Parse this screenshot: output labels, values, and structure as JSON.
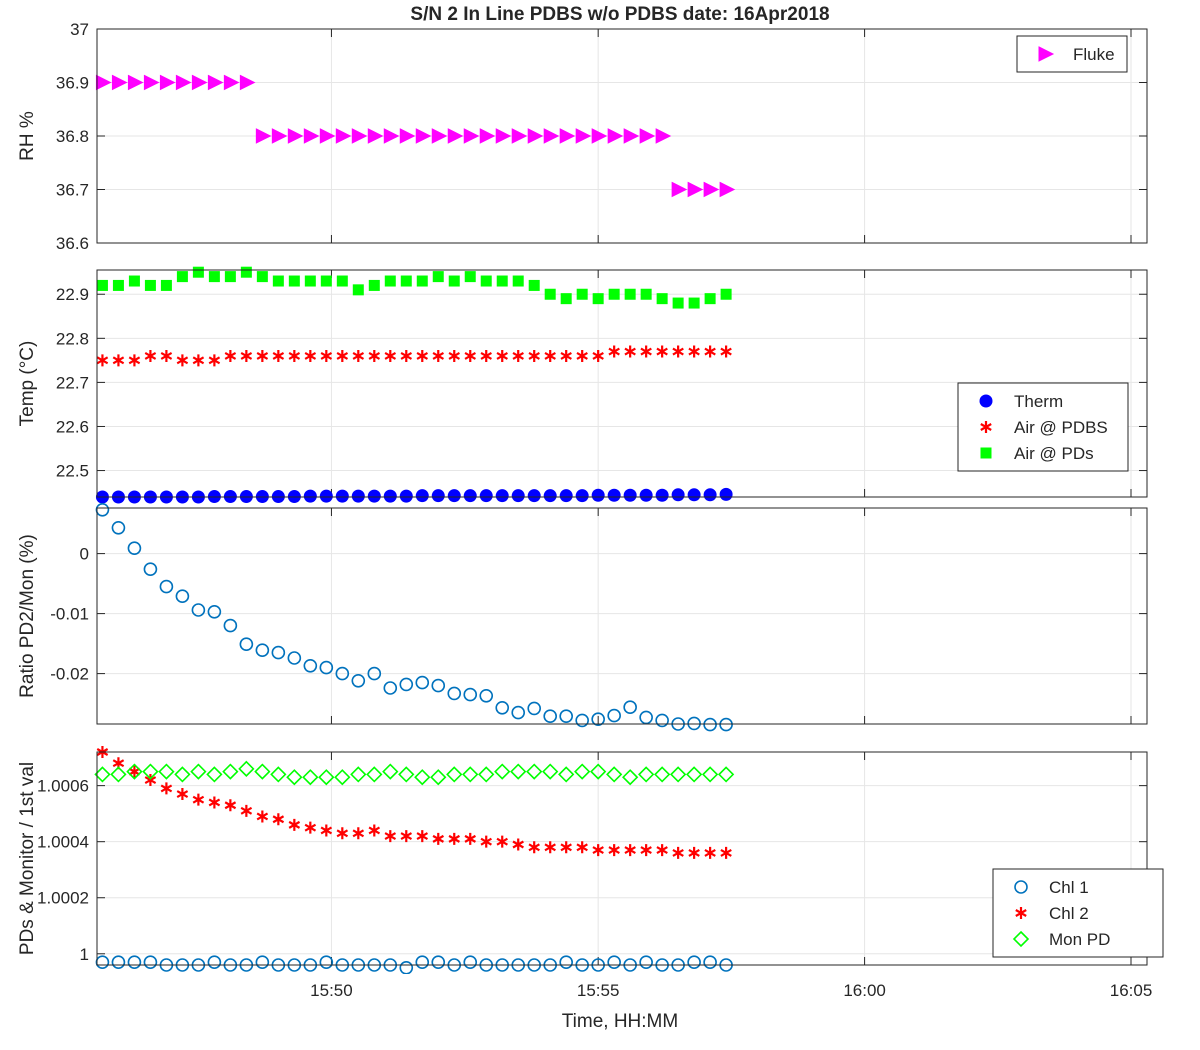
{
  "title": "S/N 2 In Line PDBS w/o PDBS date: 16Apr2018",
  "xlabel": "Time, HH:MM",
  "chart_data": [
    {
      "type": "scatter",
      "ylabel": "RH %",
      "ylim": [
        36.6,
        37.0
      ],
      "yticks": [
        "36.6",
        "36.7",
        "36.8",
        "36.9",
        "37"
      ],
      "xlim": [
        15.76,
        16.0883
      ],
      "grid": true,
      "legend_position": "top-right",
      "series": [
        {
          "name": "Fluke",
          "marker": "triangle-right",
          "color": "#ff00ff",
          "x": [
            15.7617,
            15.7667,
            15.7717,
            15.7767,
            15.7817,
            15.7867,
            15.7917,
            15.7967,
            15.8017,
            15.8067,
            15.8117,
            15.8167,
            15.8217,
            15.8267,
            15.8317,
            15.8367,
            15.8417,
            15.8467,
            15.8517,
            15.8567,
            15.8617,
            15.8667,
            15.8717,
            15.8767,
            15.8817,
            15.8867,
            15.8917,
            15.8967,
            15.9017,
            15.9067,
            15.9117,
            15.9167,
            15.9217,
            15.9267,
            15.9317,
            15.9367,
            15.9417,
            15.9467,
            15.9517,
            15.9567
          ],
          "y": [
            36.9,
            36.9,
            36.9,
            36.9,
            36.9,
            36.9,
            36.9,
            36.9,
            36.9,
            36.9,
            36.8,
            36.8,
            36.8,
            36.8,
            36.8,
            36.8,
            36.8,
            36.8,
            36.8,
            36.8,
            36.8,
            36.8,
            36.8,
            36.8,
            36.8,
            36.8,
            36.8,
            36.8,
            36.8,
            36.8,
            36.8,
            36.8,
            36.8,
            36.8,
            36.8,
            36.8,
            36.7,
            36.7,
            36.7,
            36.7
          ]
        }
      ]
    },
    {
      "type": "scatter",
      "ylabel": "Temp (°C)",
      "ylim": [
        22.44,
        22.955
      ],
      "yticks": [
        "22.5",
        "22.6",
        "22.7",
        "22.8",
        "22.9"
      ],
      "xlim": [
        15.76,
        16.0883
      ],
      "grid": true,
      "legend_position": "right",
      "series": [
        {
          "name": "Therm",
          "marker": "circle-filled",
          "color": "#0000ff",
          "x": [
            15.7617,
            15.7667,
            15.7717,
            15.7767,
            15.7817,
            15.7867,
            15.7917,
            15.7967,
            15.8017,
            15.8067,
            15.8117,
            15.8167,
            15.8217,
            15.8267,
            15.8317,
            15.8367,
            15.8417,
            15.8467,
            15.8517,
            15.8567,
            15.8617,
            15.8667,
            15.8717,
            15.8767,
            15.8817,
            15.8867,
            15.8917,
            15.8967,
            15.9017,
            15.9067,
            15.9117,
            15.9167,
            15.9217,
            15.9267,
            15.9317,
            15.9367,
            15.9417,
            15.9467,
            15.9517,
            15.9567
          ],
          "y": [
            22.44,
            22.44,
            22.44,
            22.44,
            22.44,
            22.44,
            22.44,
            22.441,
            22.441,
            22.441,
            22.441,
            22.441,
            22.441,
            22.442,
            22.442,
            22.442,
            22.442,
            22.442,
            22.442,
            22.442,
            22.443,
            22.443,
            22.443,
            22.443,
            22.443,
            22.443,
            22.443,
            22.443,
            22.443,
            22.443,
            22.443,
            22.444,
            22.444,
            22.444,
            22.444,
            22.444,
            22.445,
            22.445,
            22.445,
            22.446
          ]
        },
        {
          "name": "Air @ PDBS",
          "marker": "asterisk",
          "color": "#ff0000",
          "x": [
            15.7617,
            15.7667,
            15.7717,
            15.7767,
            15.7817,
            15.7867,
            15.7917,
            15.7967,
            15.8017,
            15.8067,
            15.8117,
            15.8167,
            15.8217,
            15.8267,
            15.8317,
            15.8367,
            15.8417,
            15.8467,
            15.8517,
            15.8567,
            15.8617,
            15.8667,
            15.8717,
            15.8767,
            15.8817,
            15.8867,
            15.8917,
            15.8967,
            15.9017,
            15.9067,
            15.9117,
            15.9167,
            15.9217,
            15.9267,
            15.9317,
            15.9367,
            15.9417,
            15.9467,
            15.9517,
            15.9567
          ],
          "y": [
            22.75,
            22.75,
            22.75,
            22.76,
            22.76,
            22.75,
            22.75,
            22.75,
            22.76,
            22.76,
            22.76,
            22.76,
            22.76,
            22.76,
            22.76,
            22.76,
            22.76,
            22.76,
            22.76,
            22.76,
            22.76,
            22.76,
            22.76,
            22.76,
            22.76,
            22.76,
            22.76,
            22.76,
            22.76,
            22.76,
            22.76,
            22.76,
            22.77,
            22.77,
            22.77,
            22.77,
            22.77,
            22.77,
            22.77,
            22.77
          ]
        },
        {
          "name": "Air @ PDs",
          "marker": "square-filled",
          "color": "#00ff00",
          "x": [
            15.7617,
            15.7667,
            15.7717,
            15.7767,
            15.7817,
            15.7867,
            15.7917,
            15.7967,
            15.8017,
            15.8067,
            15.8117,
            15.8167,
            15.8217,
            15.8267,
            15.8317,
            15.8367,
            15.8417,
            15.8467,
            15.8517,
            15.8567,
            15.8617,
            15.8667,
            15.8717,
            15.8767,
            15.8817,
            15.8867,
            15.8917,
            15.8967,
            15.9017,
            15.9067,
            15.9117,
            15.9167,
            15.9217,
            15.9267,
            15.9317,
            15.9367,
            15.9417,
            15.9467,
            15.9517,
            15.9567
          ],
          "y": [
            22.92,
            22.92,
            22.93,
            22.92,
            22.92,
            22.94,
            22.95,
            22.94,
            22.94,
            22.95,
            22.94,
            22.93,
            22.93,
            22.93,
            22.93,
            22.93,
            22.91,
            22.92,
            22.93,
            22.93,
            22.93,
            22.94,
            22.93,
            22.94,
            22.93,
            22.93,
            22.93,
            22.92,
            22.9,
            22.89,
            22.9,
            22.89,
            22.9,
            22.9,
            22.9,
            22.89,
            22.88,
            22.88,
            22.89,
            22.9
          ]
        }
      ]
    },
    {
      "type": "scatter",
      "ylabel": "Ratio PD2/Mon (%)",
      "ylim": [
        -0.0284,
        0.0076
      ],
      "yticks": [
        "-0.02",
        "-0.01",
        "0"
      ],
      "xlim": [
        15.76,
        16.0883
      ],
      "grid": true,
      "legend_position": "none",
      "series": [
        {
          "name": "",
          "marker": "circle-open",
          "color": "#0072bd",
          "x": [
            15.7617,
            15.7667,
            15.7717,
            15.7767,
            15.7817,
            15.7867,
            15.7917,
            15.7967,
            15.8017,
            15.8067,
            15.8117,
            15.8167,
            15.8217,
            15.8267,
            15.8317,
            15.8367,
            15.8417,
            15.8467,
            15.8517,
            15.8567,
            15.8617,
            15.8667,
            15.8717,
            15.8767,
            15.8817,
            15.8867,
            15.8917,
            15.8967,
            15.9017,
            15.9067,
            15.9117,
            15.9167,
            15.9217,
            15.9267,
            15.9317,
            15.9367,
            15.9417,
            15.9467,
            15.9517,
            15.9567
          ],
          "y": [
            0.0073,
            0.0043,
            0.0009,
            -0.0026,
            -0.0055,
            -0.0071,
            -0.0094,
            -0.0097,
            -0.012,
            -0.0151,
            -0.0161,
            -0.0165,
            -0.0174,
            -0.0187,
            -0.019,
            -0.02,
            -0.0212,
            -0.02,
            -0.0224,
            -0.0218,
            -0.0215,
            -0.022,
            -0.0233,
            -0.0235,
            -0.0237,
            -0.0257,
            -0.0265,
            -0.0258,
            -0.0271,
            -0.0271,
            -0.0278,
            -0.0276,
            -0.027,
            -0.0256,
            -0.0273,
            -0.0278,
            -0.0284,
            -0.0283,
            -0.0285,
            -0.0285
          ]
        }
      ]
    },
    {
      "type": "scatter",
      "ylabel": "PDs & Monitor / 1st val",
      "ylim": [
        0.99996,
        1.00072
      ],
      "yticks": [
        "1",
        "1.0002",
        "1.0004",
        "1.0006"
      ],
      "xlim": [
        15.76,
        16.0883
      ],
      "xticks": [
        15.8333,
        15.9167,
        16.0,
        16.0833
      ],
      "xticklabels": [
        "15:50",
        "15:55",
        "16:00",
        "16:05"
      ],
      "grid": true,
      "legend_position": "bottom-right",
      "series": [
        {
          "name": "Chl 1",
          "marker": "circle-open",
          "color": "#0072bd",
          "x": [
            15.7617,
            15.7667,
            15.7717,
            15.7767,
            15.7817,
            15.7867,
            15.7917,
            15.7967,
            15.8017,
            15.8067,
            15.8117,
            15.8167,
            15.8217,
            15.8267,
            15.8317,
            15.8367,
            15.8417,
            15.8467,
            15.8517,
            15.8567,
            15.8617,
            15.8667,
            15.8717,
            15.8767,
            15.8817,
            15.8867,
            15.8917,
            15.8967,
            15.9017,
            15.9067,
            15.9117,
            15.9167,
            15.9217,
            15.9267,
            15.9317,
            15.9367,
            15.9417,
            15.9467,
            15.9517,
            15.9567
          ],
          "y": [
            0.99997,
            0.99997,
            0.99997,
            0.99997,
            0.99996,
            0.99996,
            0.99996,
            0.99997,
            0.99996,
            0.99996,
            0.99997,
            0.99996,
            0.99996,
            0.99996,
            0.99997,
            0.99996,
            0.99996,
            0.99996,
            0.99996,
            0.99995,
            0.99997,
            0.99997,
            0.99996,
            0.99997,
            0.99996,
            0.99996,
            0.99996,
            0.99996,
            0.99996,
            0.99997,
            0.99996,
            0.99996,
            0.99997,
            0.99996,
            0.99997,
            0.99996,
            0.99996,
            0.99997,
            0.99997,
            0.99996
          ]
        },
        {
          "name": "Chl 2",
          "marker": "asterisk",
          "color": "#ff0000",
          "x": [
            15.7617,
            15.7667,
            15.7717,
            15.7767,
            15.7817,
            15.7867,
            15.7917,
            15.7967,
            15.8017,
            15.8067,
            15.8117,
            15.8167,
            15.8217,
            15.8267,
            15.8317,
            15.8367,
            15.8417,
            15.8467,
            15.8517,
            15.8567,
            15.8617,
            15.8667,
            15.8717,
            15.8767,
            15.8817,
            15.8867,
            15.8917,
            15.8967,
            15.9017,
            15.9067,
            15.9117,
            15.9167,
            15.9217,
            15.9267,
            15.9317,
            15.9367,
            15.9417,
            15.9467,
            15.9517,
            15.9567
          ],
          "y": [
            1.00072,
            1.00068,
            1.00065,
            1.00062,
            1.00059,
            1.00057,
            1.00055,
            1.00054,
            1.00053,
            1.00051,
            1.00049,
            1.00048,
            1.00046,
            1.00045,
            1.00044,
            1.00043,
            1.00043,
            1.00044,
            1.00042,
            1.00042,
            1.00042,
            1.00041,
            1.00041,
            1.00041,
            1.0004,
            1.0004,
            1.00039,
            1.00038,
            1.00038,
            1.00038,
            1.00038,
            1.00037,
            1.00037,
            1.00037,
            1.00037,
            1.00037,
            1.00036,
            1.00036,
            1.00036,
            1.00036
          ]
        },
        {
          "name": "Mon PD",
          "marker": "diamond-open",
          "color": "#00ff00",
          "x": [
            15.7617,
            15.7667,
            15.7717,
            15.7767,
            15.7817,
            15.7867,
            15.7917,
            15.7967,
            15.8017,
            15.8067,
            15.8117,
            15.8167,
            15.8217,
            15.8267,
            15.8317,
            15.8367,
            15.8417,
            15.8467,
            15.8517,
            15.8567,
            15.8617,
            15.8667,
            15.8717,
            15.8767,
            15.8817,
            15.8867,
            15.8917,
            15.8967,
            15.9017,
            15.9067,
            15.9117,
            15.9167,
            15.9217,
            15.9267,
            15.9317,
            15.9367,
            15.9417,
            15.9467,
            15.9517,
            15.9567
          ],
          "y": [
            1.00064,
            1.00064,
            1.00065,
            1.00065,
            1.00065,
            1.00064,
            1.00065,
            1.00064,
            1.00065,
            1.00066,
            1.00065,
            1.00064,
            1.00063,
            1.00063,
            1.00063,
            1.00063,
            1.00064,
            1.00064,
            1.00065,
            1.00064,
            1.00063,
            1.00063,
            1.00064,
            1.00064,
            1.00064,
            1.00065,
            1.00065,
            1.00065,
            1.00065,
            1.00064,
            1.00065,
            1.00065,
            1.00064,
            1.00063,
            1.00064,
            1.00064,
            1.00064,
            1.00064,
            1.00064,
            1.00064
          ]
        }
      ]
    }
  ]
}
